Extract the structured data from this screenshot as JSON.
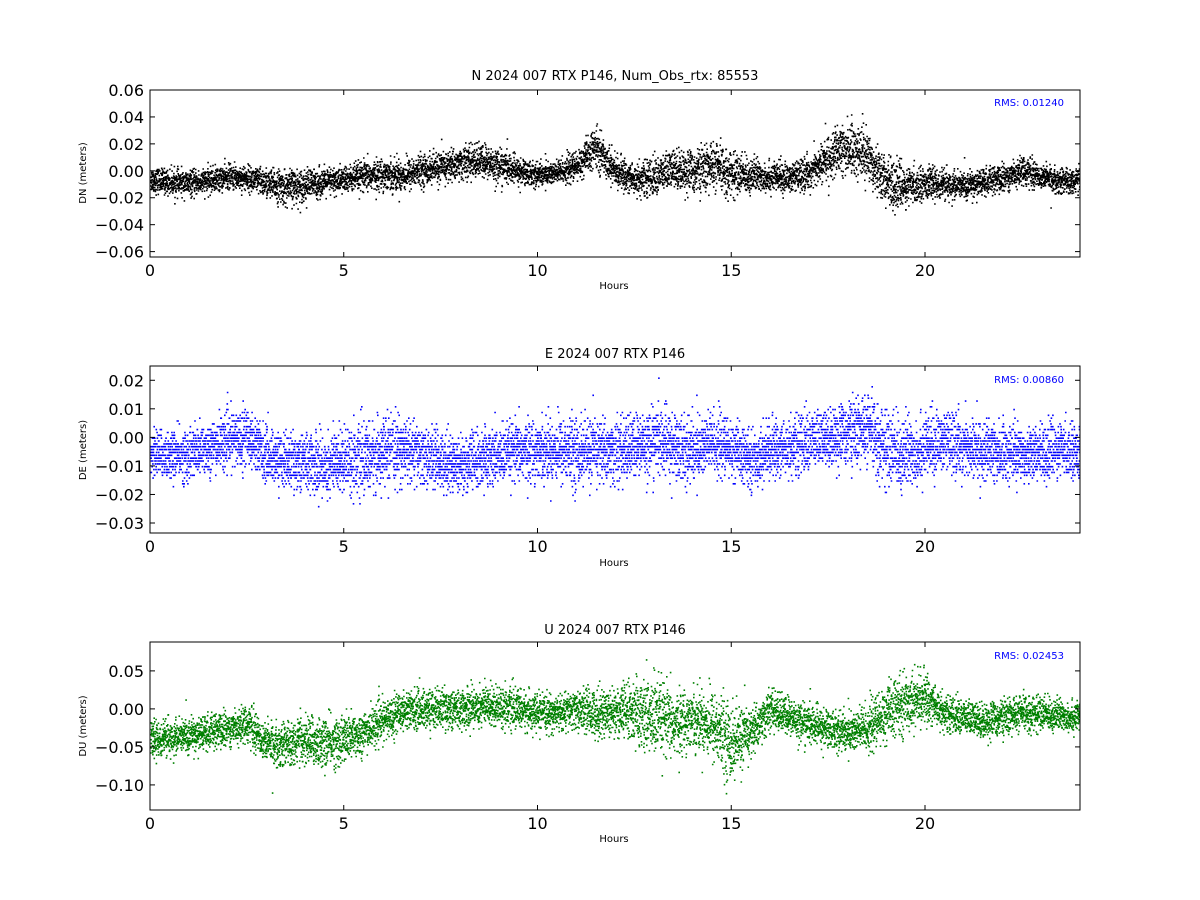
{
  "chart_data": [
    {
      "type": "scatter",
      "component": "N",
      "title": "N 2024 007 RTX  P146, Num_Obs_rtx: 85553",
      "xlabel": "Hours",
      "ylabel": "DN (meters)",
      "xlim": [
        0,
        24
      ],
      "ylim": [
        -0.064,
        0.06
      ],
      "xticks": [
        0,
        5,
        10,
        15,
        20
      ],
      "yticks": [
        -0.06,
        -0.04,
        -0.02,
        0.0,
        0.02,
        0.04,
        0.06
      ],
      "ytick_labels": [
        "−0.06",
        "−0.04",
        "−0.02",
        "0.00",
        "0.02",
        "0.04",
        "0.06"
      ],
      "annotation": "RMS:  0.01240",
      "annotation_color": "#0000ff",
      "color": "#000000",
      "grid": false,
      "series": [
        {
          "hours": [
            0,
            0.5,
            1,
            1.5,
            2,
            2.5,
            3,
            3.5,
            4,
            4.5,
            5,
            5.5,
            6,
            6.5,
            7,
            7.5,
            8,
            8.5,
            9,
            9.5,
            10,
            10.5,
            11,
            11.5,
            12,
            12.5,
            13,
            13.5,
            14,
            14.5,
            15,
            15.5,
            16,
            16.5,
            17,
            17.5,
            18,
            18.5,
            19,
            19.5,
            20,
            20.5,
            21,
            21.5,
            22,
            22.5,
            23,
            23.5,
            24
          ],
          "center": [
            -0.006,
            -0.008,
            -0.009,
            -0.007,
            -0.004,
            -0.005,
            -0.009,
            -0.012,
            -0.01,
            -0.008,
            -0.006,
            -0.004,
            -0.002,
            -0.003,
            0.001,
            0.003,
            0.006,
            0.008,
            0.004,
            0.0,
            -0.002,
            -0.001,
            0.004,
            0.018,
            0.0,
            -0.006,
            -0.004,
            0.002,
            0.0,
            0.004,
            -0.002,
            -0.003,
            -0.004,
            -0.005,
            -0.001,
            0.01,
            0.018,
            0.012,
            -0.008,
            -0.012,
            -0.008,
            -0.01,
            -0.011,
            -0.008,
            -0.005,
            0.001,
            -0.004,
            -0.007,
            -0.007
          ],
          "spread": [
            0.01,
            0.01,
            0.01,
            0.01,
            0.01,
            0.01,
            0.012,
            0.014,
            0.013,
            0.011,
            0.011,
            0.012,
            0.012,
            0.013,
            0.012,
            0.013,
            0.013,
            0.014,
            0.014,
            0.011,
            0.01,
            0.01,
            0.012,
            0.016,
            0.012,
            0.013,
            0.015,
            0.016,
            0.017,
            0.019,
            0.018,
            0.014,
            0.012,
            0.012,
            0.013,
            0.018,
            0.022,
            0.02,
            0.02,
            0.016,
            0.012,
            0.012,
            0.011,
            0.011,
            0.011,
            0.011,
            0.01,
            0.01,
            0.01
          ]
        }
      ]
    },
    {
      "type": "scatter",
      "component": "E",
      "title": "E 2024 007 RTX  P146",
      "xlabel": "Hours",
      "ylabel": "DE (meters)",
      "xlim": [
        0,
        24
      ],
      "ylim": [
        -0.0335,
        0.025
      ],
      "xticks": [
        0,
        5,
        10,
        15,
        20
      ],
      "yticks": [
        -0.03,
        -0.02,
        -0.01,
        0.0,
        0.01,
        0.02
      ],
      "ytick_labels": [
        "−0.03",
        "−0.02",
        "−0.01",
        "0.00",
        "0.01",
        "0.02"
      ],
      "annotation": "RMS:  0.00860",
      "annotation_color": "#0000ff",
      "color": "#0000ff",
      "grid": false,
      "series": [
        {
          "hours": [
            0,
            0.5,
            1,
            1.5,
            2,
            2.5,
            3,
            3.5,
            4,
            4.5,
            5,
            5.5,
            6,
            6.5,
            7,
            7.5,
            8,
            8.5,
            9,
            9.5,
            10,
            10.5,
            11,
            11.5,
            12,
            12.5,
            13,
            13.5,
            14,
            14.5,
            15,
            15.5,
            16,
            16.5,
            17,
            17.5,
            18,
            18.5,
            19,
            19.5,
            20,
            20.5,
            21,
            21.5,
            22,
            22.5,
            23,
            23.5,
            24
          ],
          "center": [
            -0.005,
            -0.006,
            -0.006,
            -0.003,
            -0.001,
            0.001,
            -0.006,
            -0.008,
            -0.008,
            -0.01,
            -0.007,
            -0.008,
            -0.005,
            -0.004,
            -0.006,
            -0.008,
            -0.009,
            -0.008,
            -0.006,
            -0.005,
            -0.004,
            -0.004,
            -0.005,
            -0.004,
            -0.005,
            -0.003,
            -0.001,
            -0.003,
            -0.004,
            -0.002,
            -0.004,
            -0.008,
            -0.004,
            -0.003,
            -0.001,
            0.0,
            0.002,
            0.003,
            -0.004,
            -0.006,
            -0.003,
            -0.001,
            -0.003,
            -0.005,
            -0.005,
            -0.005,
            -0.005,
            -0.004,
            -0.004
          ],
          "spread": [
            0.009,
            0.009,
            0.01,
            0.01,
            0.01,
            0.011,
            0.01,
            0.01,
            0.011,
            0.012,
            0.012,
            0.013,
            0.012,
            0.012,
            0.011,
            0.011,
            0.011,
            0.011,
            0.011,
            0.011,
            0.011,
            0.012,
            0.013,
            0.012,
            0.012,
            0.012,
            0.013,
            0.013,
            0.013,
            0.012,
            0.011,
            0.01,
            0.01,
            0.011,
            0.011,
            0.011,
            0.012,
            0.013,
            0.014,
            0.014,
            0.012,
            0.011,
            0.011,
            0.011,
            0.011,
            0.01,
            0.01,
            0.01,
            0.01
          ]
        }
      ]
    },
    {
      "type": "scatter",
      "component": "U",
      "title": "U 2024 007 RTX  P146",
      "xlabel": "Hours",
      "ylabel": "DU (meters)",
      "xlim": [
        0,
        24
      ],
      "ylim": [
        -0.133,
        0.088
      ],
      "xticks": [
        0,
        5,
        10,
        15,
        20
      ],
      "yticks": [
        -0.1,
        -0.05,
        0.0,
        0.05
      ],
      "ytick_labels": [
        "−0.10",
        "−0.05",
        "0.00",
        "0.05"
      ],
      "annotation": "RMS:  0.02453",
      "annotation_color": "#0000ff",
      "color": "#008000",
      "grid": false,
      "series": [
        {
          "hours": [
            0,
            0.5,
            1,
            1.5,
            2,
            2.5,
            3,
            3.5,
            4,
            4.5,
            5,
            5.5,
            6,
            6.5,
            7,
            7.5,
            8,
            8.5,
            9,
            9.5,
            10,
            10.5,
            11,
            11.5,
            12,
            12.5,
            13,
            13.5,
            14,
            14.5,
            15,
            15.5,
            16,
            16.5,
            17,
            17.5,
            18,
            18.5,
            19,
            19.5,
            20,
            20.5,
            21,
            21.5,
            22,
            22.5,
            23,
            23.5,
            24
          ],
          "center": [
            -0.04,
            -0.038,
            -0.035,
            -0.03,
            -0.025,
            -0.018,
            -0.045,
            -0.045,
            -0.04,
            -0.045,
            -0.04,
            -0.03,
            -0.015,
            0.0,
            0.0,
            0.002,
            0.0,
            0.005,
            0.005,
            0.0,
            -0.005,
            -0.005,
            0.0,
            -0.005,
            -0.002,
            -0.005,
            -0.01,
            -0.02,
            -0.01,
            -0.02,
            -0.045,
            -0.03,
            0.0,
            -0.01,
            -0.02,
            -0.025,
            -0.03,
            -0.025,
            -0.005,
            0.01,
            0.015,
            -0.005,
            -0.01,
            -0.015,
            -0.01,
            -0.005,
            -0.005,
            -0.008,
            -0.01
          ],
          "spread": [
            0.025,
            0.025,
            0.025,
            0.025,
            0.025,
            0.025,
            0.03,
            0.03,
            0.035,
            0.035,
            0.035,
            0.03,
            0.028,
            0.028,
            0.028,
            0.028,
            0.028,
            0.03,
            0.028,
            0.028,
            0.025,
            0.025,
            0.028,
            0.035,
            0.035,
            0.045,
            0.06,
            0.045,
            0.04,
            0.05,
            0.055,
            0.035,
            0.028,
            0.028,
            0.028,
            0.028,
            0.03,
            0.035,
            0.04,
            0.04,
            0.035,
            0.025,
            0.025,
            0.025,
            0.025,
            0.025,
            0.025,
            0.022,
            0.022
          ]
        }
      ]
    }
  ]
}
